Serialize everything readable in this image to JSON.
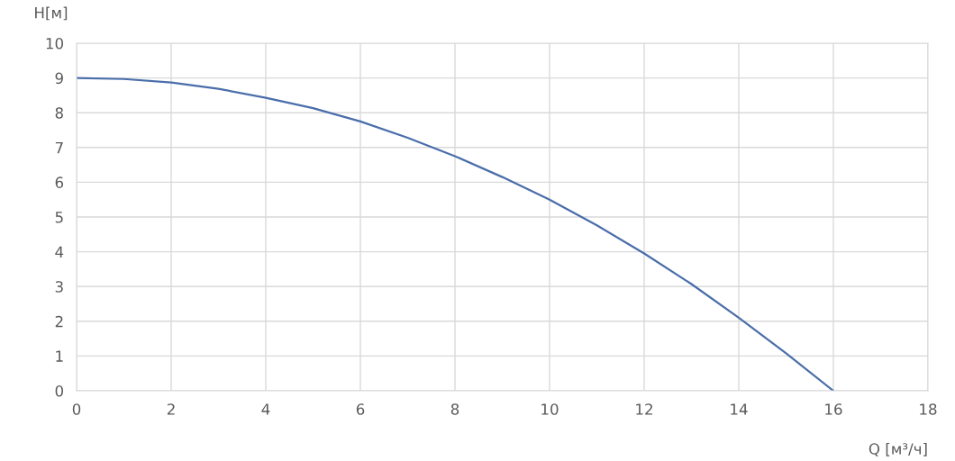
{
  "chart_data": {
    "type": "line",
    "xlabel": "Q [м³/ч]",
    "ylabel": "H[м]",
    "x": [
      0,
      1,
      2,
      3,
      4,
      5,
      6,
      7,
      8,
      9,
      10,
      11,
      12,
      13,
      14,
      15,
      16
    ],
    "series": [
      {
        "color": "#4a6eaa",
        "values": [
          9,
          8.97,
          8.87,
          8.69,
          8.43,
          8.13,
          7.75,
          7.28,
          6.75,
          6.15,
          5.5,
          4.76,
          3.95,
          3.07,
          2.1,
          1.08,
          0
        ]
      }
    ],
    "xlim": [
      0,
      18
    ],
    "xticks": [
      0,
      2,
      4,
      6,
      8,
      10,
      12,
      14,
      16,
      18
    ],
    "ylim": [
      0,
      10
    ],
    "yticks": [
      0,
      1,
      2,
      3,
      4,
      5,
      6,
      7,
      8,
      9,
      10
    ],
    "grid": true,
    "marker": "none",
    "line_style": "solid"
  }
}
